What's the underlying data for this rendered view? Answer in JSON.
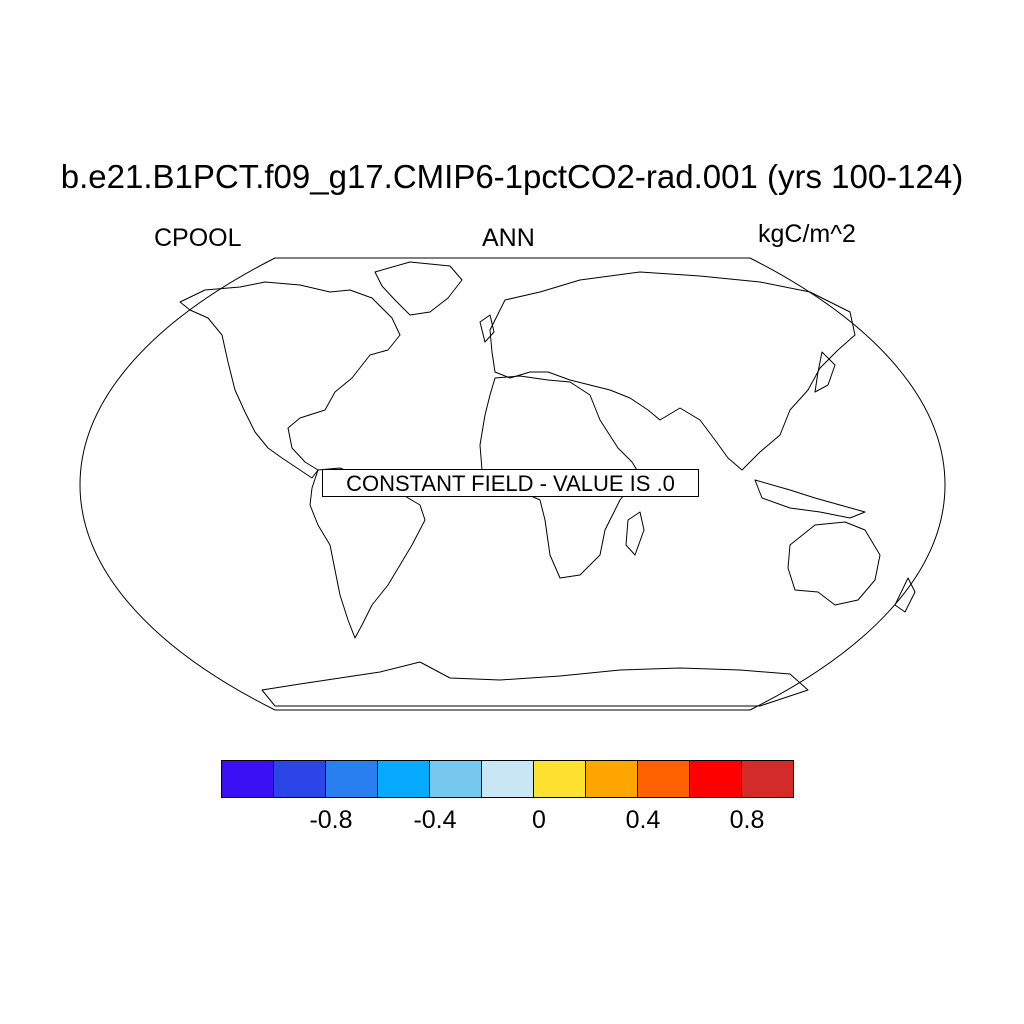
{
  "title": "b.e21.B1PCT.f09_g17.CMIP6-1pctCO2-rad.001 (yrs 100-124)",
  "left_label": "CPOOL",
  "center_label": "ANN",
  "right_label": "kgC/m^2",
  "annotation": "CONSTANT FIELD - VALUE IS .0",
  "map": {
    "projection": "robinson",
    "coastlines": true
  },
  "colorbar": {
    "colors": [
      "#3b10f5",
      "#2b45e6",
      "#2a7ff0",
      "#06aaff",
      "#77c8ef",
      "#c9e6f5",
      "#fde232",
      "#ffa600",
      "#ff6100",
      "#ff0000",
      "#d32a2a"
    ],
    "tick_labels": [
      "-0.8",
      "-0.4",
      "0",
      "0.4",
      "0.8"
    ]
  }
}
